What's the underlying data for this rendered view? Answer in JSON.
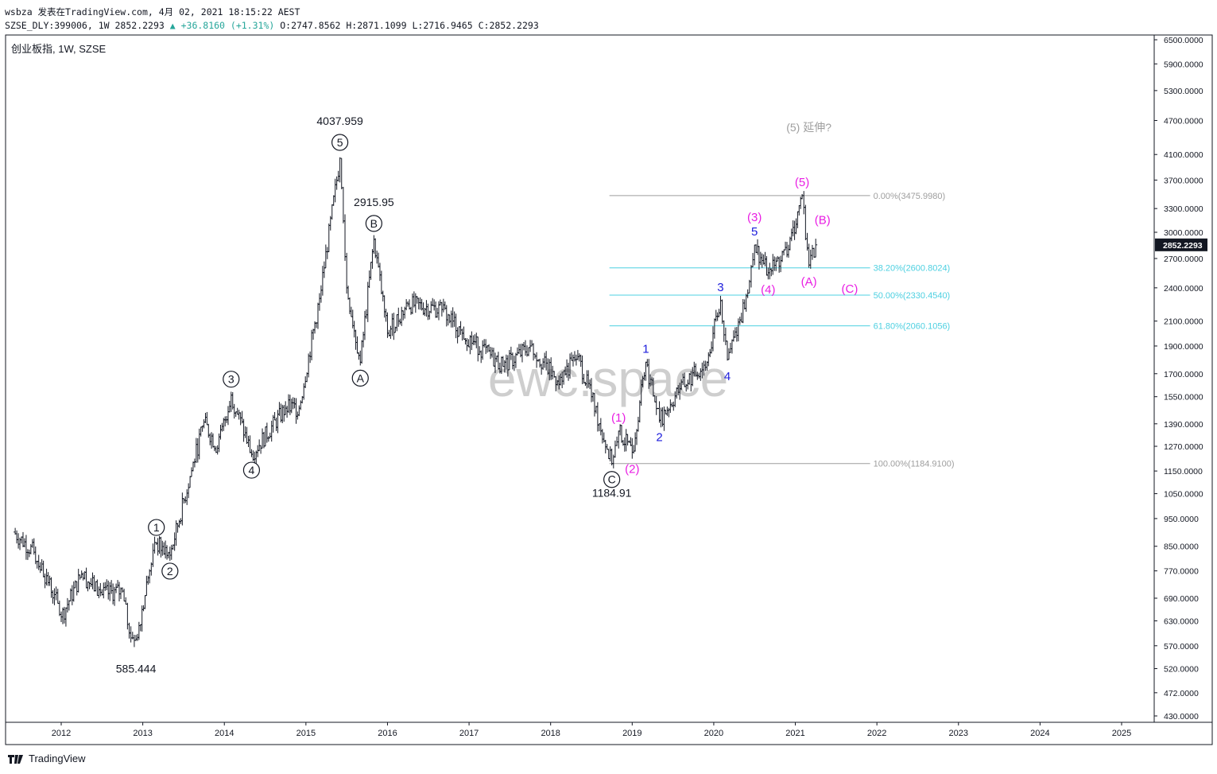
{
  "header": {
    "line1": "wsbza 发表在TradingView.com, 4月 02, 2021 18:15:22 AEST",
    "symbol": "SZSE_DLY:399006, 1W",
    "last": "2852.2293",
    "change": "▲ +36.8160 (+1.31%)",
    "open_label": "O:",
    "open": "2747.8562",
    "high_label": "H:",
    "high": "2871.1099",
    "low_label": "L:",
    "low": "2716.9465",
    "close_label": "C:",
    "close": "2852.2293"
  },
  "chart_title": "创业板指, 1W, SZSE",
  "watermark": "ewc.space",
  "brand": "TradingView",
  "colors": {
    "bars": "#131722",
    "fib": "#4dd0e1",
    "fib_edge": "#9e9e9e",
    "wave_pink": "#e91ee3",
    "wave_blue": "#1c1cdc",
    "wave_black": "#131722",
    "price_badge": "#131722"
  },
  "chart_data": {
    "type": "ohlc",
    "symbol": "创业板指",
    "timeframe": "1W",
    "exchange": "SZSE",
    "y_scale": "log",
    "ylim": [
      430,
      6500
    ],
    "x_ticks": [
      "2012",
      "2013",
      "2014",
      "2015",
      "2016",
      "2017",
      "2018",
      "2019",
      "2020",
      "2021",
      "2022",
      "2023",
      "2024",
      "2025"
    ],
    "y_ticks": [
      "6500.0000",
      "5900.0000",
      "5300.0000",
      "4700.0000",
      "4100.0000",
      "3700.0000",
      "3300.0000",
      "3000.0000",
      "2700.0000",
      "2400.0000",
      "2100.0000",
      "1900.0000",
      "1700.0000",
      "1550.0000",
      "1390.0000",
      "1270.0000",
      "1150.0000",
      "1050.0000",
      "950.0000",
      "850.0000",
      "770.0000",
      "690.0000",
      "630.0000",
      "570.0000",
      "520.0000",
      "472.0000",
      "430.0000"
    ],
    "last_price_label": "2852.2293",
    "price_path": [
      [
        "2011-06",
        900
      ],
      [
        "2011-09",
        830
      ],
      [
        "2011-12",
        700
      ],
      [
        "2012-01",
        640
      ],
      [
        "2012-04",
        760
      ],
      [
        "2012-07",
        700
      ],
      [
        "2012-10",
        710
      ],
      [
        "2012-11",
        600
      ],
      [
        "2012-12",
        585.444
      ],
      [
        "2013-02",
        770
      ],
      [
        "2013-03",
        860
      ],
      [
        "2013-05",
        820
      ],
      [
        "2013-10",
        1400
      ],
      [
        "2013-12",
        1260
      ],
      [
        "2014-02",
        1560
      ],
      [
        "2014-05",
        1230
      ],
      [
        "2014-10",
        1480
      ],
      [
        "2014-12",
        1480
      ],
      [
        "2015-03",
        2300
      ],
      [
        "2015-06",
        4037.959
      ],
      [
        "2015-07",
        2400
      ],
      [
        "2015-09",
        1780
      ],
      [
        "2015-11",
        2915.95
      ],
      [
        "2016-01",
        2000
      ],
      [
        "2016-04",
        2250
      ],
      [
        "2016-09",
        2200
      ],
      [
        "2016-12",
        2000
      ],
      [
        "2017-06",
        1750
      ],
      [
        "2017-10",
        1900
      ],
      [
        "2018-02",
        1650
      ],
      [
        "2018-05",
        1820
      ],
      [
        "2018-07",
        1550
      ],
      [
        "2018-10",
        1184.91
      ],
      [
        "2018-11",
        1350
      ],
      [
        "2019-01",
        1240
      ],
      [
        "2019-03",
        1780
      ],
      [
        "2019-05",
        1410
      ],
      [
        "2019-08",
        1600
      ],
      [
        "2019-12",
        1780
      ],
      [
        "2020-02",
        2280
      ],
      [
        "2020-03",
        1800
      ],
      [
        "2020-06",
        2350
      ],
      [
        "2020-07",
        2850
      ],
      [
        "2020-09",
        2550
      ],
      [
        "2020-12",
        2800
      ],
      [
        "2021-02",
        3475.998
      ],
      [
        "2021-03",
        2630
      ],
      [
        "2021-04",
        2852.2293
      ]
    ],
    "fibonacci": {
      "range": [
        "2018-10",
        "2021-12"
      ],
      "levels": [
        {
          "label": "0.00%(3475.9980)",
          "value": 3475.998,
          "style": "edge"
        },
        {
          "label": "38.20%(2600.8024)",
          "value": 2600.8024,
          "style": "fib"
        },
        {
          "label": "50.00%(2330.4540)",
          "value": 2330.454,
          "style": "fib"
        },
        {
          "label": "61.80%(2060.1056)",
          "value": 2060.1056,
          "style": "fib"
        },
        {
          "label": "100.00%(1184.9100)",
          "value": 1184.91,
          "style": "edge"
        }
      ]
    },
    "price_labels": [
      {
        "text": "4037.959",
        "date": "2015-06",
        "price": 4037.959,
        "place": "above"
      },
      {
        "text": "2915.95",
        "date": "2015-11",
        "price": 2915.95,
        "place": "above"
      },
      {
        "text": "1184.91",
        "date": "2018-10",
        "price": 1184.91,
        "place": "below"
      },
      {
        "text": "585.444",
        "date": "2012-12",
        "price": 585.444,
        "place": "below"
      }
    ],
    "wave_labels": [
      {
        "text": "1",
        "date": "2013-03",
        "price": 860,
        "style": "circle",
        "place": "above"
      },
      {
        "text": "2",
        "date": "2013-05",
        "price": 820,
        "style": "circle",
        "place": "below"
      },
      {
        "text": "3",
        "date": "2014-02",
        "price": 1560,
        "style": "circle",
        "place": "above"
      },
      {
        "text": "4",
        "date": "2014-05",
        "price": 1230,
        "style": "circle",
        "place": "below"
      },
      {
        "text": "5",
        "date": "2015-06",
        "price": 4037.959,
        "style": "circle",
        "place": "above"
      },
      {
        "text": "A",
        "date": "2015-09",
        "price": 1780,
        "style": "circle",
        "place": "below"
      },
      {
        "text": "B",
        "date": "2015-11",
        "price": 2915.95,
        "style": "circle",
        "place": "above"
      },
      {
        "text": "C",
        "date": "2018-10",
        "price": 1184.91,
        "style": "circle",
        "place": "below"
      },
      {
        "text": "(1)",
        "date": "2018-11",
        "price": 1350,
        "style": "pink",
        "place": "above"
      },
      {
        "text": "(2)",
        "date": "2019-01",
        "price": 1240,
        "style": "pink",
        "place": "below"
      },
      {
        "text": "(3)",
        "date": "2020-07",
        "price": 2850,
        "style": "pink",
        "place": "above-high"
      },
      {
        "text": "(4)",
        "date": "2020-09",
        "price": 2550,
        "style": "pink",
        "place": "below"
      },
      {
        "text": "(5)",
        "date": "2021-02",
        "price": 3475.998,
        "style": "pink",
        "place": "above"
      },
      {
        "text": "(A)",
        "date": "2021-03",
        "price": 2630,
        "style": "pink",
        "place": "below"
      },
      {
        "text": "(B)",
        "date": "2021-05",
        "price": 3150,
        "style": "pink",
        "place": "at"
      },
      {
        "text": "(C)",
        "date": "2021-09",
        "price": 2390,
        "style": "pink",
        "place": "at"
      },
      {
        "text": "1",
        "date": "2019-03",
        "price": 1780,
        "style": "blue",
        "place": "above"
      },
      {
        "text": "2",
        "date": "2019-05",
        "price": 1410,
        "style": "blue",
        "place": "below"
      },
      {
        "text": "3",
        "date": "2020-02",
        "price": 2280,
        "style": "blue",
        "place": "above"
      },
      {
        "text": "4",
        "date": "2020-03",
        "price": 1800,
        "style": "blue",
        "place": "below"
      },
      {
        "text": "5",
        "date": "2020-07",
        "price": 2850,
        "style": "blue",
        "place": "above"
      }
    ],
    "annotation": {
      "text": "(5) 延伸?",
      "date": "2021-03",
      "price": 4500
    }
  }
}
